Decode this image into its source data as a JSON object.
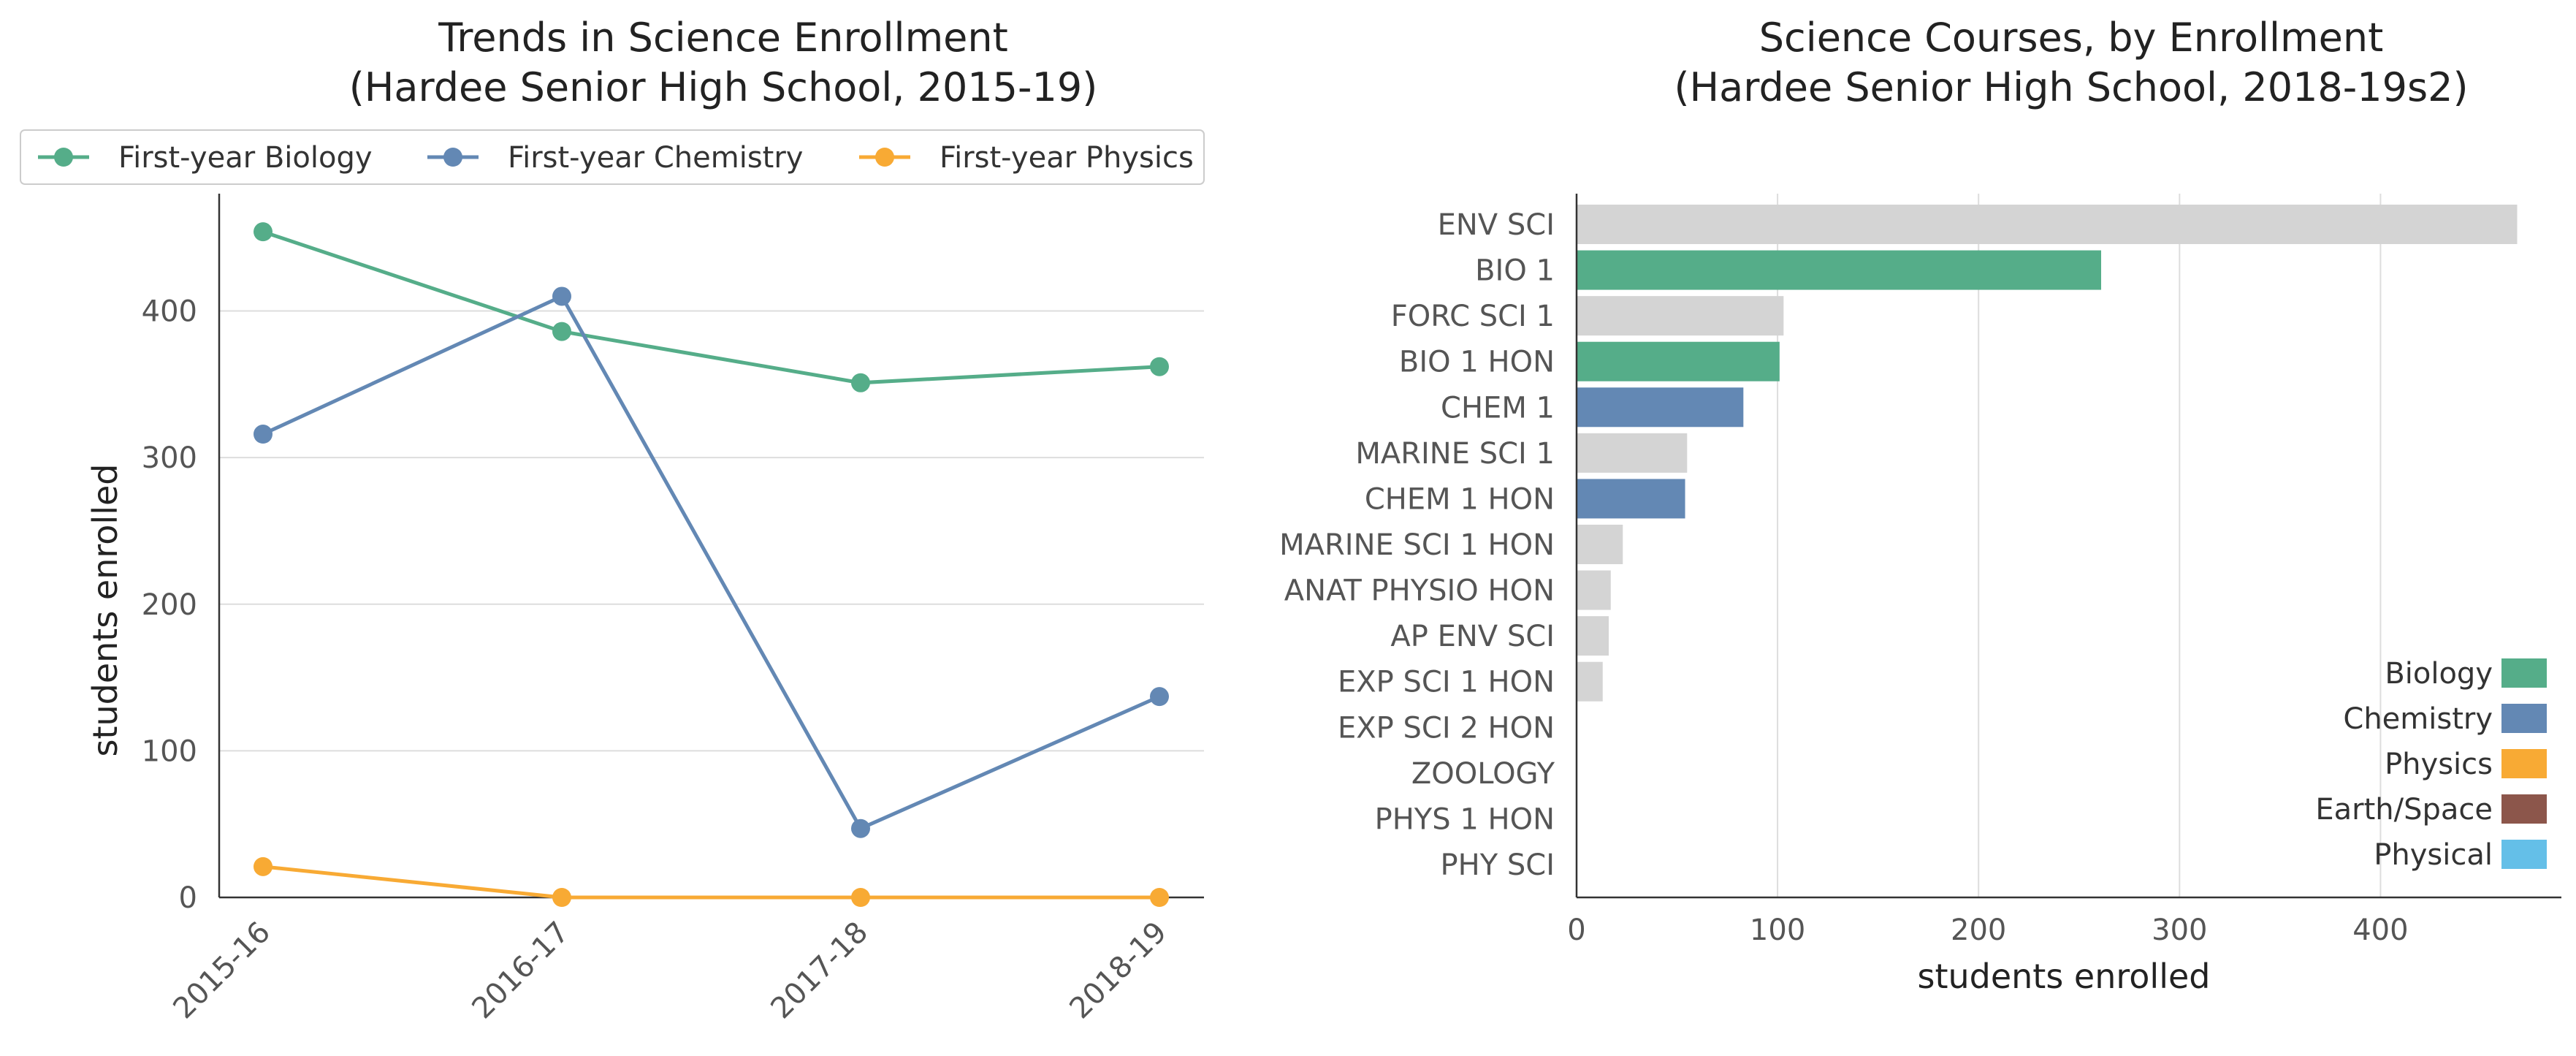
{
  "chart_data": [
    {
      "type": "line",
      "title_line1": "Trends in Science Enrollment",
      "title_line2": "(Hardee Senior High School, 2015-19)",
      "xlabel": "",
      "ylabel": "students enrolled",
      "x": [
        "2015-16",
        "2016-17",
        "2017-18",
        "2018-19"
      ],
      "ylim": [
        0,
        480
      ],
      "yticks": [
        0,
        100,
        200,
        300,
        400
      ],
      "grid": "horizontal",
      "legend_position": "top",
      "series": [
        {
          "name": "First-year Biology",
          "color": "#55ad89",
          "values": [
            454,
            386,
            351,
            362
          ]
        },
        {
          "name": "First-year Chemistry",
          "color": "#6388b4",
          "values": [
            316,
            410,
            47,
            137
          ]
        },
        {
          "name": "First-year Physics",
          "color": "#f8aa34",
          "values": [
            21,
            0,
            0,
            0
          ]
        }
      ]
    },
    {
      "type": "bar",
      "orientation": "horizontal",
      "title_line1": "Science Courses, by Enrollment",
      "title_line2": "(Hardee Senior High School, 2018-19s2)",
      "xlabel": "students enrolled",
      "ylabel": "",
      "xlim": [
        0,
        490
      ],
      "xticks": [
        0,
        100,
        200,
        300,
        400
      ],
      "grid": "vertical",
      "legend_position": "lower-right",
      "categories": [
        "ENV SCI",
        "BIO 1",
        "FORC SCI 1",
        "BIO 1 HON",
        "CHEM 1",
        "MARINE SCI 1",
        "CHEM 1 HON",
        "MARINE SCI 1 HON",
        "ANAT PHYSIO HON",
        "AP ENV SCI",
        "EXP SCI 1 HON",
        "EXP SCI 2 HON",
        "ZOOLOGY",
        "PHYS 1 HON",
        "PHY SCI"
      ],
      "values": [
        468,
        261,
        103,
        101,
        83,
        55,
        54,
        23,
        17,
        16,
        13,
        0,
        0,
        0,
        0
      ],
      "bar_groups": [
        "other",
        "Biology",
        "other",
        "Biology",
        "Chemistry",
        "other",
        "Chemistry",
        "other",
        "other",
        "other",
        "other",
        "other",
        "other",
        "other",
        "other"
      ],
      "group_colors": {
        "Biology": "#55ad89",
        "Chemistry": "#6388b4",
        "Physics": "#f8aa34",
        "Earth/Space": "#8c564b",
        "Physical": "#64bfe8",
        "other": "#d4d4d4"
      },
      "legend": [
        "Biology",
        "Chemistry",
        "Physics",
        "Earth/Space",
        "Physical"
      ]
    }
  ]
}
